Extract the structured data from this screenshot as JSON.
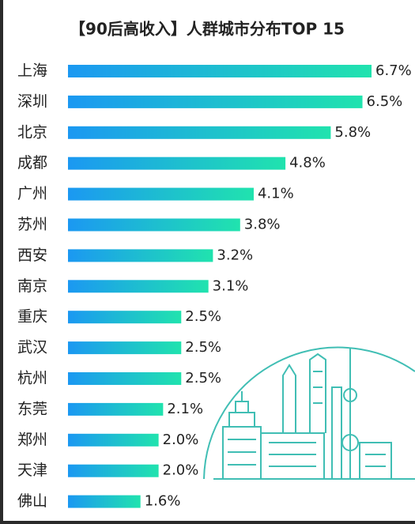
{
  "chart_data": {
    "type": "barh",
    "title": "【90后高收入】人群城市分布TOP 15",
    "categories": [
      "上海",
      "深圳",
      "北京",
      "成都",
      "广州",
      "苏州",
      "西安",
      "南京",
      "重庆",
      "武汉",
      "杭州",
      "东莞",
      "郑州",
      "天津",
      "佛山"
    ],
    "values": [
      6.7,
      6.5,
      5.8,
      4.8,
      4.1,
      3.8,
      3.2,
      3.1,
      2.5,
      2.5,
      2.5,
      2.1,
      2.0,
      2.0,
      1.6
    ],
    "value_labels": [
      "6.7%",
      "6.5%",
      "5.8%",
      "4.8%",
      "4.1%",
      "3.8%",
      "3.2%",
      "3.1%",
      "2.5%",
      "2.5%",
      "2.5%",
      "2.1%",
      "2.0%",
      "2.0%",
      "1.6%"
    ],
    "gradient": [
      "#1b98f2",
      "#20e3ae"
    ]
  }
}
